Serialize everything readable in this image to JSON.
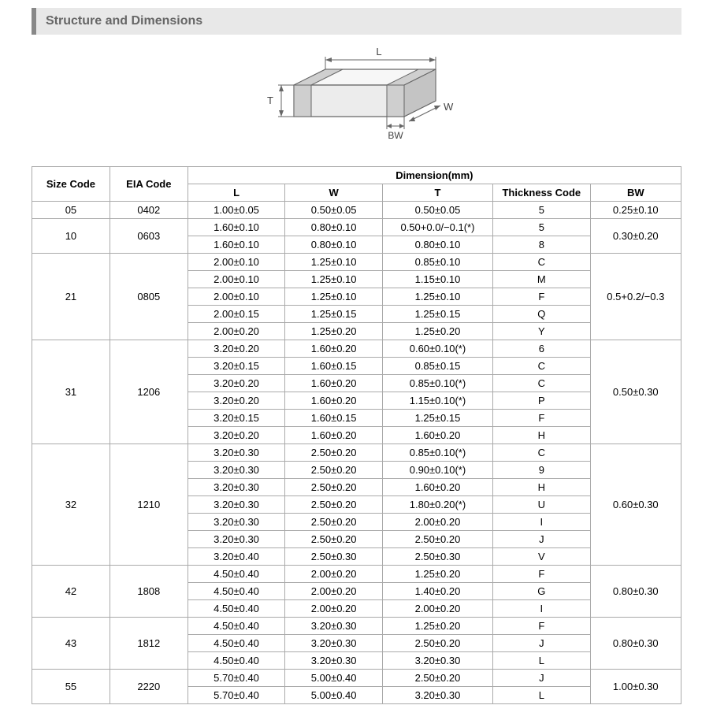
{
  "title": "Structure and Dimensions",
  "diagram": {
    "L": "L",
    "W": "W",
    "T": "T",
    "BW": "BW",
    "stroke": "#666666",
    "fill_top": "#f7f7f7",
    "fill_front": "#ececec",
    "fill_side": "#d8d8d8",
    "band_fill": "#cfcfcf"
  },
  "header": {
    "size_code": "Size Code",
    "eia_code": "EIA Code",
    "dimension_group": "Dimension(mm)",
    "L": "L",
    "W": "W",
    "T": "T",
    "thickness_code": "Thickness Code",
    "BW": "BW"
  },
  "groups": [
    {
      "size_code": "05",
      "eia_code": "0402",
      "bw": "0.25±0.10",
      "rows": [
        {
          "L": "1.00±0.05",
          "W": "0.50±0.05",
          "T": "0.50±0.05",
          "TC": "5"
        }
      ]
    },
    {
      "size_code": "10",
      "eia_code": "0603",
      "bw": "0.30±0.20",
      "rows": [
        {
          "L": "1.60±0.10",
          "W": "0.80±0.10",
          "T": "0.50+0.0/−0.1(*)",
          "TC": "5"
        },
        {
          "L": "1.60±0.10",
          "W": "0.80±0.10",
          "T": "0.80±0.10",
          "TC": "8"
        }
      ]
    },
    {
      "size_code": "21",
      "eia_code": "0805",
      "bw": "0.5+0.2/−0.3",
      "rows": [
        {
          "L": "2.00±0.10",
          "W": "1.25±0.10",
          "T": "0.85±0.10",
          "TC": "C"
        },
        {
          "L": "2.00±0.10",
          "W": "1.25±0.10",
          "T": "1.15±0.10",
          "TC": "M"
        },
        {
          "L": "2.00±0.10",
          "W": "1.25±0.10",
          "T": "1.25±0.10",
          "TC": "F"
        },
        {
          "L": "2.00±0.15",
          "W": "1.25±0.15",
          "T": "1.25±0.15",
          "TC": "Q"
        },
        {
          "L": "2.00±0.20",
          "W": "1.25±0.20",
          "T": "1.25±0.20",
          "TC": "Y"
        }
      ]
    },
    {
      "size_code": "31",
      "eia_code": "1206",
      "bw": "0.50±0.30",
      "rows": [
        {
          "L": "3.20±0.20",
          "W": "1.60±0.20",
          "T": "0.60±0.10(*)",
          "TC": "6"
        },
        {
          "L": "3.20±0.15",
          "W": "1.60±0.15",
          "T": "0.85±0.15",
          "TC": "C"
        },
        {
          "L": "3.20±0.20",
          "W": "1.60±0.20",
          "T": "0.85±0.10(*)",
          "TC": "C"
        },
        {
          "L": "3.20±0.20",
          "W": "1.60±0.20",
          "T": "1.15±0.10(*)",
          "TC": "P"
        },
        {
          "L": "3.20±0.15",
          "W": "1.60±0.15",
          "T": "1.25±0.15",
          "TC": "F"
        },
        {
          "L": "3.20±0.20",
          "W": "1.60±0.20",
          "T": "1.60±0.20",
          "TC": "H"
        }
      ]
    },
    {
      "size_code": "32",
      "eia_code": "1210",
      "bw": "0.60±0.30",
      "rows": [
        {
          "L": "3.20±0.30",
          "W": "2.50±0.20",
          "T": "0.85±0.10(*)",
          "TC": "C"
        },
        {
          "L": "3.20±0.30",
          "W": "2.50±0.20",
          "T": "0.90±0.10(*)",
          "TC": "9"
        },
        {
          "L": "3.20±0.30",
          "W": "2.50±0.20",
          "T": "1.60±0.20",
          "TC": "H"
        },
        {
          "L": "3.20±0.30",
          "W": "2.50±0.20",
          "T": "1.80±0.20(*)",
          "TC": "U"
        },
        {
          "L": "3.20±0.30",
          "W": "2.50±0.20",
          "T": "2.00±0.20",
          "TC": "I"
        },
        {
          "L": "3.20±0.30",
          "W": "2.50±0.20",
          "T": "2.50±0.20",
          "TC": "J"
        },
        {
          "L": "3.20±0.40",
          "W": "2.50±0.30",
          "T": "2.50±0.30",
          "TC": "V"
        }
      ]
    },
    {
      "size_code": "42",
      "eia_code": "1808",
      "bw": "0.80±0.30",
      "rows": [
        {
          "L": "4.50±0.40",
          "W": "2.00±0.20",
          "T": "1.25±0.20",
          "TC": "F"
        },
        {
          "L": "4.50±0.40",
          "W": "2.00±0.20",
          "T": "1.40±0.20",
          "TC": "G"
        },
        {
          "L": "4.50±0.40",
          "W": "2.00±0.20",
          "T": "2.00±0.20",
          "TC": "I"
        }
      ]
    },
    {
      "size_code": "43",
      "eia_code": "1812",
      "bw": "0.80±0.30",
      "rows": [
        {
          "L": "4.50±0.40",
          "W": "3.20±0.30",
          "T": "1.25±0.20",
          "TC": "F"
        },
        {
          "L": "4.50±0.40",
          "W": "3.20±0.30",
          "T": "2.50±0.20",
          "TC": "J"
        },
        {
          "L": "4.50±0.40",
          "W": "3.20±0.30",
          "T": "3.20±0.30",
          "TC": "L"
        }
      ]
    },
    {
      "size_code": "55",
      "eia_code": "2220",
      "bw": "1.00±0.30",
      "rows": [
        {
          "L": "5.70±0.40",
          "W": "5.00±0.40",
          "T": "2.50±0.20",
          "TC": "J"
        },
        {
          "L": "5.70±0.40",
          "W": "5.00±0.40",
          "T": "3.20±0.30",
          "TC": "L"
        }
      ]
    }
  ],
  "colors": {
    "title_bg": "#e8e8e8",
    "title_bar_accent": "#888888",
    "title_text": "#666666",
    "border": "#aaaaaa",
    "background": "#ffffff"
  },
  "typography": {
    "title_fontsize": 16,
    "table_fontsize": 13,
    "font_family": "Arial, sans-serif"
  }
}
